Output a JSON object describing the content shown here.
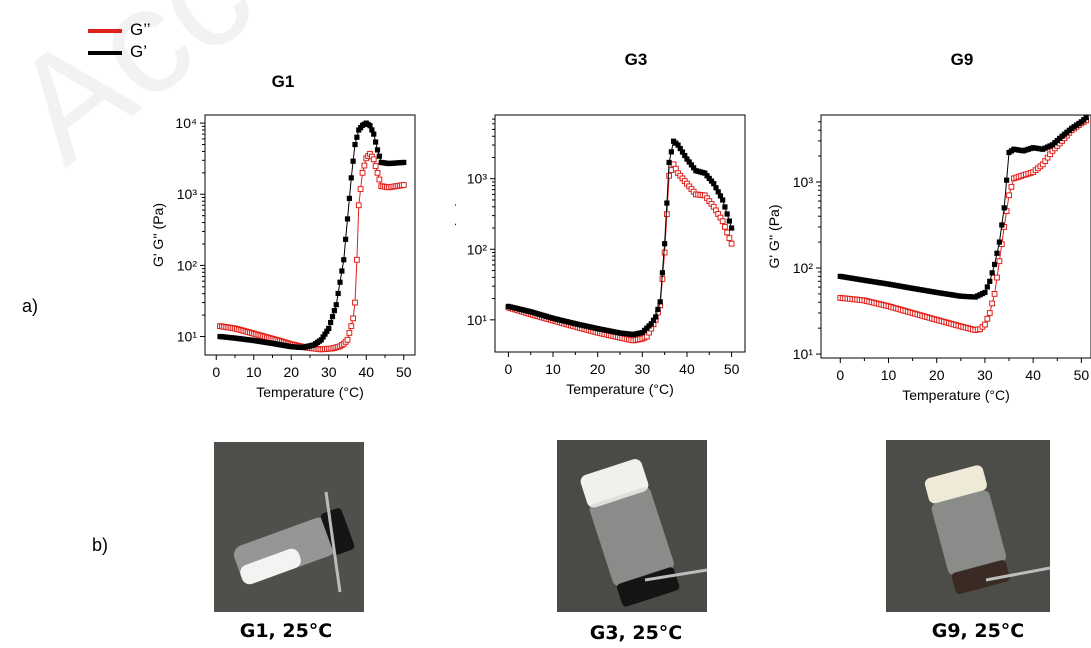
{
  "labels": {
    "a": "a)",
    "b": "b)"
  },
  "legend": [
    {
      "label": "G’’",
      "color": "#e0201b"
    },
    {
      "label": "G’",
      "color": "#000000"
    }
  ],
  "charts": [
    {
      "title": "G1",
      "caption": "G1, 25°C"
    },
    {
      "title": "G3",
      "caption": "G3, 25°C"
    },
    {
      "title": "G9",
      "caption": "G9, 25°C"
    }
  ],
  "chart_data": [
    {
      "type": "scatter",
      "title": "G1",
      "xlabel": "Temperature (°C)",
      "ylabel": "G' G'' (Pa)",
      "y_scale": "log",
      "xlim": [
        -3,
        53
      ],
      "ylim": [
        5.5,
        13000
      ],
      "x_ticks": [
        0,
        10,
        20,
        30,
        40,
        50
      ],
      "y_ticks": [
        10,
        100,
        1000,
        10000
      ],
      "y_tick_labels": [
        "10¹",
        "10²",
        "10³",
        "10⁴"
      ],
      "colors": {
        "G_prime": "#000000",
        "G_double_prime": "#e0201b"
      },
      "series": [
        {
          "name": "G'",
          "marker": "filled-square",
          "points": [
            [
              1,
              10
            ],
            [
              5,
              9.5
            ],
            [
              10,
              8.8
            ],
            [
              15,
              8
            ],
            [
              20,
              7.2
            ],
            [
              23,
              7
            ],
            [
              26,
              7.6
            ],
            [
              28,
              9
            ],
            [
              30,
              13
            ],
            [
              32,
              28
            ],
            [
              34,
              120
            ],
            [
              35,
              450
            ],
            [
              36,
              1700
            ],
            [
              37,
              5000
            ],
            [
              38,
              8000
            ],
            [
              39,
              9300
            ],
            [
              40,
              10000
            ],
            [
              41,
              9200
            ],
            [
              42,
              7000
            ],
            [
              43,
              4200
            ],
            [
              44,
              2800
            ],
            [
              46,
              2700
            ],
            [
              48,
              2750
            ],
            [
              50,
              2800
            ]
          ]
        },
        {
          "name": "G''",
          "marker": "open-square",
          "points": [
            [
              1,
              14
            ],
            [
              5,
              13
            ],
            [
              10,
              11
            ],
            [
              15,
              9.3
            ],
            [
              20,
              7.8
            ],
            [
              24,
              7
            ],
            [
              26,
              6.8
            ],
            [
              28,
              6.6
            ],
            [
              31,
              6.8
            ],
            [
              33,
              7.3
            ],
            [
              34,
              7.9
            ],
            [
              35,
              9
            ],
            [
              36,
              14
            ],
            [
              36.5,
              18
            ],
            [
              37,
              30
            ],
            [
              37.5,
              120
            ],
            [
              38,
              700
            ],
            [
              39,
              2000
            ],
            [
              40,
              3200
            ],
            [
              41,
              3700
            ],
            [
              42,
              3100
            ],
            [
              43,
              2000
            ],
            [
              44,
              1300
            ],
            [
              46,
              1250
            ],
            [
              48,
              1300
            ],
            [
              50,
              1350
            ]
          ]
        }
      ]
    },
    {
      "type": "scatter",
      "title": "G3",
      "xlabel": "Temperature (°C)",
      "ylabel": "G' G'' (Pa)",
      "y_scale": "log",
      "xlim": [
        -3,
        53
      ],
      "ylim": [
        3.5,
        8000
      ],
      "x_ticks": [
        0,
        10,
        20,
        30,
        40,
        50
      ],
      "y_ticks": [
        10,
        100,
        1000
      ],
      "y_tick_labels": [
        "10¹",
        "10²",
        "10³"
      ],
      "colors": {
        "G_prime": "#000000",
        "G_double_prime": "#e0201b"
      },
      "series": [
        {
          "name": "G'",
          "marker": "filled-square",
          "points": [
            [
              0,
              15.5
            ],
            [
              5,
              13
            ],
            [
              10,
              10.5
            ],
            [
              15,
              8.8
            ],
            [
              20,
              7.5
            ],
            [
              25,
              6.5
            ],
            [
              28,
              6.2
            ],
            [
              30,
              6.6
            ],
            [
              32,
              8.8
            ],
            [
              33,
              11
            ],
            [
              34,
              18
            ],
            [
              35,
              120
            ],
            [
              36,
              1700
            ],
            [
              37,
              3400
            ],
            [
              38,
              3000
            ],
            [
              40,
              1900
            ],
            [
              42,
              1300
            ],
            [
              44,
              1200
            ],
            [
              46,
              850
            ],
            [
              48,
              500
            ],
            [
              50,
              200
            ]
          ]
        },
        {
          "name": "G''",
          "marker": "open-square",
          "points": [
            [
              0,
              15
            ],
            [
              5,
              12
            ],
            [
              10,
              9.8
            ],
            [
              15,
              8
            ],
            [
              20,
              6.6
            ],
            [
              25,
              5.6
            ],
            [
              28,
              5.1
            ],
            [
              30,
              5.4
            ],
            [
              31,
              5.8
            ],
            [
              32,
              7.5
            ],
            [
              33,
              10
            ],
            [
              34,
              16
            ],
            [
              35,
              90
            ],
            [
              36,
              1100
            ],
            [
              37,
              1600
            ],
            [
              38,
              1200
            ],
            [
              40,
              850
            ],
            [
              42,
              600
            ],
            [
              44,
              580
            ],
            [
              46,
              400
            ],
            [
              48,
              250
            ],
            [
              50,
              120
            ]
          ]
        }
      ]
    },
    {
      "type": "scatter",
      "title": "G9",
      "xlabel": "Temperature (°C)",
      "ylabel": "G' G'' (Pa)",
      "y_scale": "log",
      "xlim": [
        -4,
        52
      ],
      "ylim": [
        9,
        6000
      ],
      "x_ticks": [
        0,
        10,
        20,
        30,
        40,
        50
      ],
      "y_ticks": [
        10,
        100,
        1000
      ],
      "y_tick_labels": [
        "10¹",
        "10²",
        "10³"
      ],
      "colors": {
        "G_prime": "#000000",
        "G_double_prime": "#e0201b"
      },
      "series": [
        {
          "name": "G'",
          "marker": "filled-square",
          "points": [
            [
              0,
              80
            ],
            [
              5,
              72
            ],
            [
              10,
              65
            ],
            [
              15,
              58
            ],
            [
              20,
              52
            ],
            [
              25,
              47
            ],
            [
              28,
              46
            ],
            [
              30,
              52
            ],
            [
              31,
              70
            ],
            [
              32,
              110
            ],
            [
              33,
              200
            ],
            [
              34,
              500
            ],
            [
              35,
              2200
            ],
            [
              36,
              2400
            ],
            [
              38,
              2300
            ],
            [
              40,
              2500
            ],
            [
              42,
              2400
            ],
            [
              44,
              2700
            ],
            [
              46,
              3400
            ],
            [
              48,
              4200
            ],
            [
              50,
              5000
            ],
            [
              51,
              5600
            ]
          ]
        },
        {
          "name": "G''",
          "marker": "open-square",
          "points": [
            [
              0,
              45
            ],
            [
              5,
              42
            ],
            [
              10,
              36
            ],
            [
              15,
              30
            ],
            [
              20,
              25
            ],
            [
              25,
              21
            ],
            [
              28,
              19
            ],
            [
              29,
              19.5
            ],
            [
              30,
              22
            ],
            [
              31,
              30
            ],
            [
              32,
              50
            ],
            [
              33,
              120
            ],
            [
              34,
              300
            ],
            [
              35,
              700
            ],
            [
              36,
              1100
            ],
            [
              38,
              1200
            ],
            [
              40,
              1300
            ],
            [
              42,
              1600
            ],
            [
              44,
              2300
            ],
            [
              46,
              3000
            ],
            [
              48,
              4000
            ],
            [
              50,
              4800
            ],
            [
              51,
              5200
            ]
          ]
        }
      ]
    }
  ]
}
